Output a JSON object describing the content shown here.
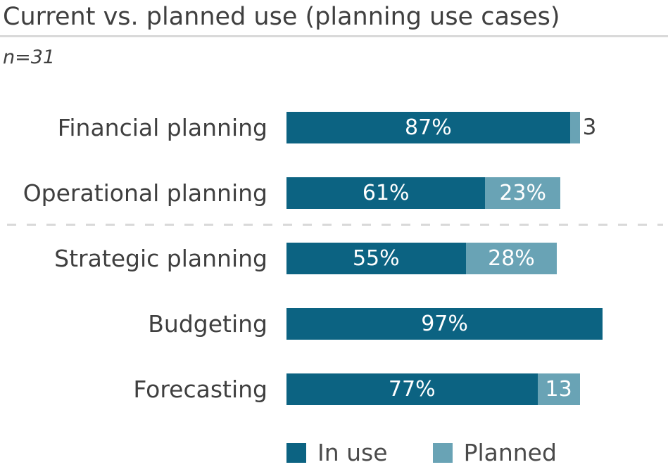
{
  "header": {
    "title": "Current vs. planned use (planning use cases)",
    "sample_note": "n=31"
  },
  "colors": {
    "in_use": "#0c6382",
    "planned": "#69a3b5"
  },
  "legend": {
    "in_use_label": "In use",
    "planned_label": "Planned"
  },
  "chart_data": {
    "type": "bar",
    "orientation": "horizontal-stacked",
    "title": "Current vs. planned use (planning use cases)",
    "sample_size": 31,
    "unit": "percent",
    "xlim": [
      0,
      100
    ],
    "grid": false,
    "legend_position": "bottom",
    "categories": [
      "Financial planning",
      "Operational planning",
      "Strategic planning",
      "Budgeting",
      "Forecasting"
    ],
    "series": [
      {
        "name": "In use",
        "color": "#0c6382",
        "values": [
          87,
          61,
          55,
          97,
          77
        ]
      },
      {
        "name": "Planned",
        "color": "#69a3b5",
        "values": [
          3,
          23,
          28,
          0,
          13
        ]
      }
    ],
    "divider_after_category_index": 1,
    "rows": [
      {
        "label": "Financial planning",
        "in_use": 87,
        "in_use_label": "87%",
        "planned": 3,
        "planned_label": "",
        "outside_label": "3"
      },
      {
        "label": "Operational planning",
        "in_use": 61,
        "in_use_label": "61%",
        "planned": 23,
        "planned_label": "23%",
        "outside_label": ""
      },
      {
        "label": "Strategic planning",
        "in_use": 55,
        "in_use_label": "55%",
        "planned": 28,
        "planned_label": "28%",
        "outside_label": ""
      },
      {
        "label": "Budgeting",
        "in_use": 97,
        "in_use_label": "97%",
        "planned": 0,
        "planned_label": "",
        "outside_label": ""
      },
      {
        "label": "Forecasting",
        "in_use": 77,
        "in_use_label": "77%",
        "planned": 13,
        "planned_label": "13",
        "outside_label": ""
      }
    ]
  }
}
